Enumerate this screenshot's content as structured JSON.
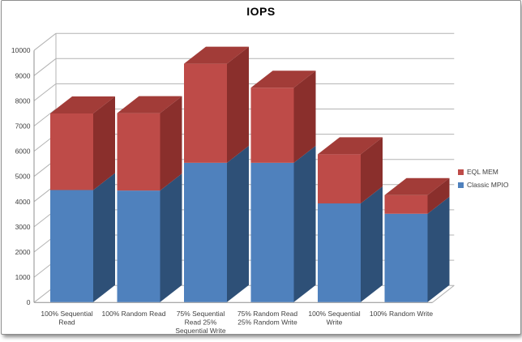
{
  "chart_data": {
    "type": "bar",
    "variant": "3d-stacked-column",
    "title": "IOPS",
    "categories": [
      "100% Sequential Read",
      "100% Random Read",
      "75% Sequential Read 25% Sequential Write",
      "75% Random Read 25% Random Write",
      "100% Sequential Write",
      "100% Random Write"
    ],
    "category_label_lines": [
      [
        "100% Sequential",
        "Read"
      ],
      [
        "100% Random Read"
      ],
      [
        "75% Sequential",
        "Read 25%",
        "Sequential Write"
      ],
      [
        "75% Random Read",
        "25% Random Write"
      ],
      [
        "100% Sequential",
        "Write"
      ],
      [
        "100% Random Write"
      ]
    ],
    "stacked": true,
    "series": [
      {
        "name": "Classic MPIO",
        "color": "#4F81BD",
        "side_color": "#2E5077",
        "values": [
          4460,
          4440,
          5540,
          5540,
          3930,
          3520
        ]
      },
      {
        "name": "EQL MEM",
        "color": "#BE4B48",
        "side_color": "#8A2F2C",
        "top_color": "#A23C38",
        "values": [
          3040,
          3070,
          3930,
          2980,
          1950,
          740
        ]
      }
    ],
    "ylim": [
      0,
      10000
    ],
    "ytick_step": 1000,
    "yticks": [
      0,
      1000,
      2000,
      3000,
      4000,
      5000,
      6000,
      7000,
      8000,
      9000,
      10000
    ],
    "grid": true,
    "axis_text_color": "#3f3f3f",
    "gridline_color": "#b3b3b3",
    "axis_line_color": "#8f8f8f",
    "legend": {
      "position": "right",
      "entries": [
        {
          "label": "EQL MEM",
          "color": "#BE4B48"
        },
        {
          "label": "Classic MPIO",
          "color": "#4F81BD"
        }
      ]
    }
  }
}
